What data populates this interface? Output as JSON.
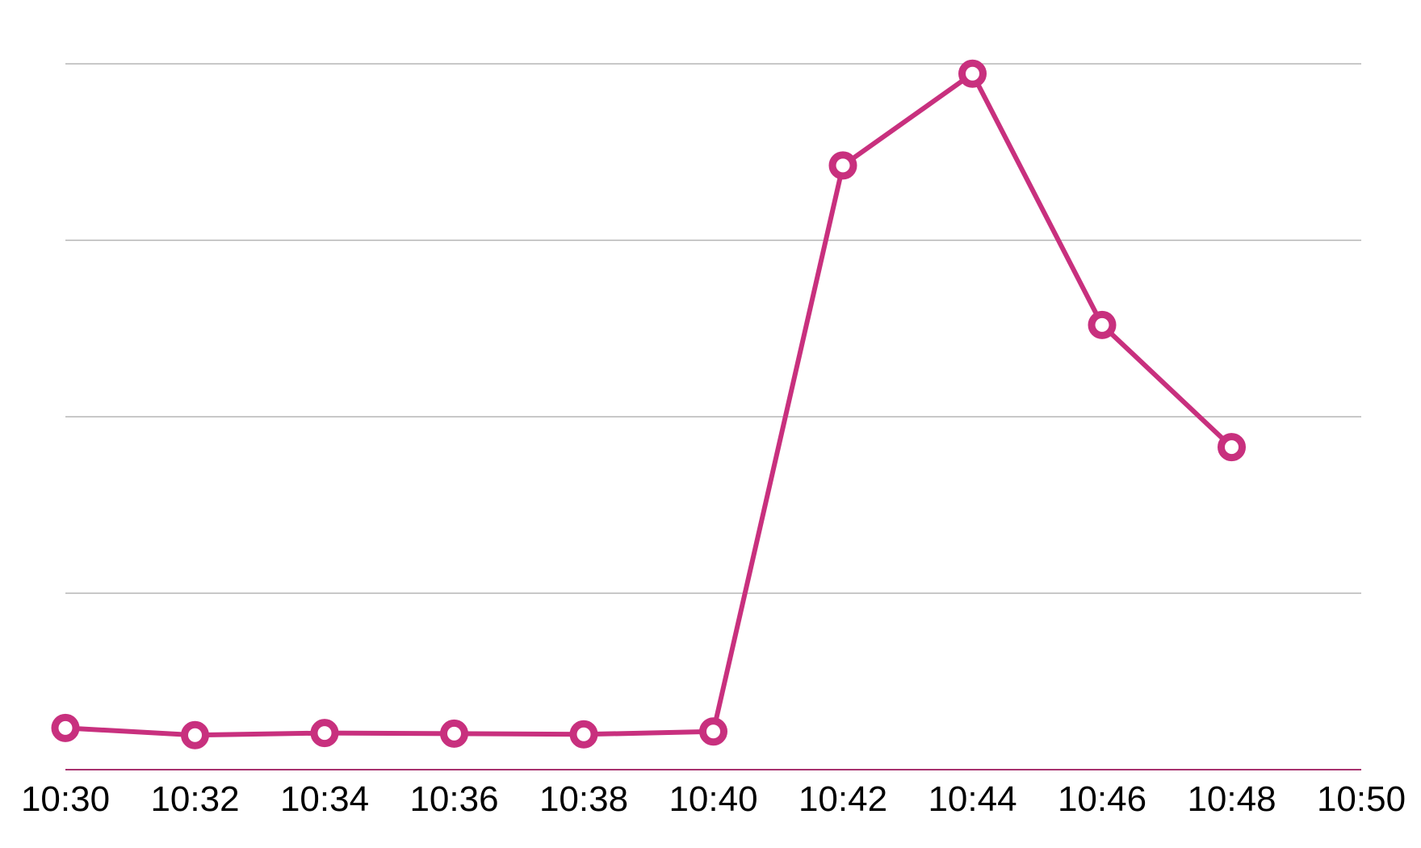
{
  "colors": {
    "series": "#c8307e",
    "grid": "#b5b5b5",
    "baseline": "#a8326e"
  },
  "chart_data": {
    "type": "line",
    "title": "",
    "xlabel": "",
    "ylabel": "",
    "x_ticks": [
      "10:30",
      "10:32",
      "10:34",
      "10:36",
      "10:38",
      "10:40",
      "10:42",
      "10:44",
      "10:46",
      "10:48",
      "10:50"
    ],
    "xlim": [
      "10:30",
      "10:50"
    ],
    "ylim": [
      0,
      100
    ],
    "y_grid_values": [
      0,
      25,
      50,
      75,
      100
    ],
    "y_tick_labels_shown": false,
    "grid": true,
    "legend": "none",
    "series": [
      {
        "x": [
          "10:30",
          "10:32",
          "10:34",
          "10:36",
          "10:38",
          "10:40",
          "10:42",
          "10:44",
          "10:46",
          "10:48"
        ],
        "values": [
          5.9,
          4.9,
          5.2,
          5.1,
          5.0,
          5.4,
          85.6,
          98.6,
          63.0,
          45.7
        ]
      }
    ]
  }
}
